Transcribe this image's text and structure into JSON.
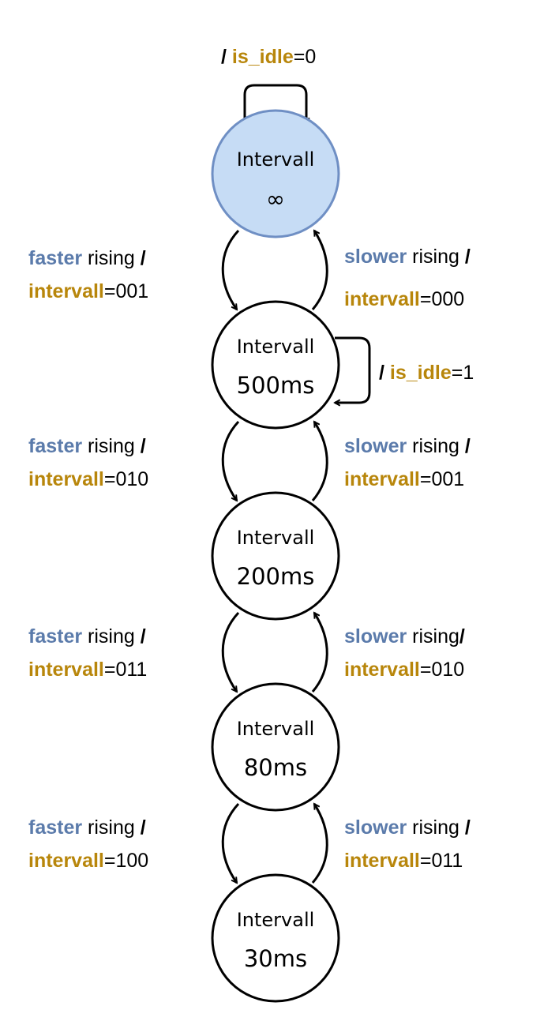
{
  "colors": {
    "trigger": "#5b7bab",
    "output": "#b8860b",
    "initial_fill": "#c6dcf5",
    "initial_stroke": "#6f8fc4"
  },
  "states": [
    {
      "line1": "Intervall",
      "line2": "∞"
    },
    {
      "line1": "Intervall",
      "line2": "500ms"
    },
    {
      "line1": "Intervall",
      "line2": "200ms"
    },
    {
      "line1": "Intervall",
      "line2": "80ms"
    },
    {
      "line1": "Intervall",
      "line2": "30ms"
    }
  ],
  "self_loops": [
    {
      "slash": "/",
      "var": "is_idle",
      "eq": "=0"
    },
    {
      "slash": "/",
      "var": "is_idle",
      "eq": "=1"
    }
  ],
  "down_transitions": [
    {
      "trigger": "faster",
      "event": "rising",
      "slash": "/",
      "var": "intervall",
      "eq": "=001"
    },
    {
      "trigger": "faster",
      "event": "rising",
      "slash": "/",
      "var": "intervall",
      "eq": "=010"
    },
    {
      "trigger": "faster",
      "event": "rising",
      "slash": "/",
      "var": "intervall",
      "eq": "=011"
    },
    {
      "trigger": "faster",
      "event": "rising",
      "slash": "/",
      "var": "intervall",
      "eq": "=100"
    }
  ],
  "up_transitions": [
    {
      "trigger": "slower",
      "event": "rising",
      "slash": "/",
      "var": "intervall",
      "eq": "=000"
    },
    {
      "trigger": "slower",
      "event": "rising",
      "slash": "/",
      "var": "intervall",
      "eq": "=001"
    },
    {
      "trigger": "slower",
      "event": "rising",
      "slash": "/",
      "var": "intervall",
      "eq": "=010"
    },
    {
      "trigger": "slower",
      "event": "rising",
      "slash": "/",
      "var": "intervall",
      "eq": "=011"
    }
  ]
}
